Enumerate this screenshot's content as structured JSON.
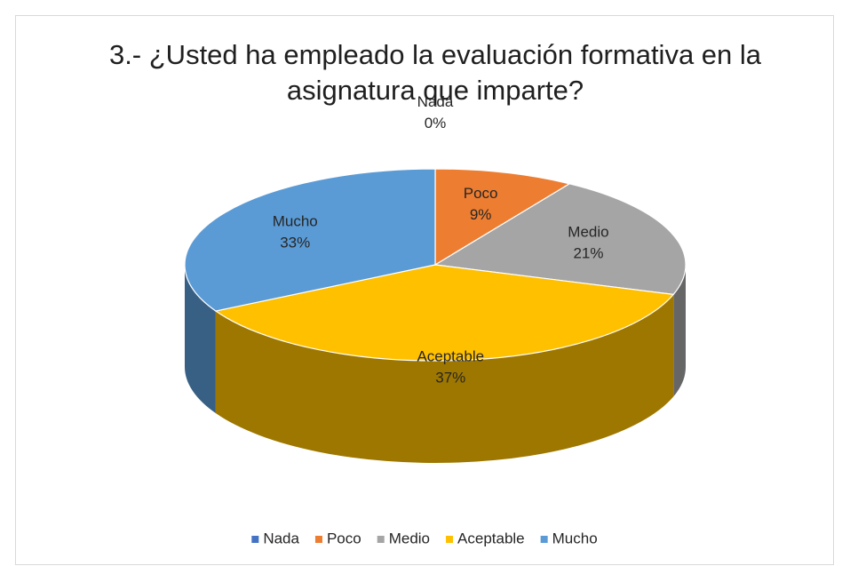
{
  "chart_data": {
    "type": "pie",
    "title": "3.- ¿Usted ha empleado la evaluación formativa en la asignatura que imparte?",
    "categories": [
      "Nada",
      "Poco",
      "Medio",
      "Aceptable",
      "Mucho"
    ],
    "values": [
      0,
      9,
      21,
      37,
      33
    ],
    "value_labels": [
      "0%",
      "9%",
      "21%",
      "37%",
      "33%"
    ],
    "colors": [
      "#4472c4",
      "#ed7d31",
      "#a5a5a5",
      "#ffc000",
      "#5b9bd5"
    ],
    "legend": "bottom"
  }
}
